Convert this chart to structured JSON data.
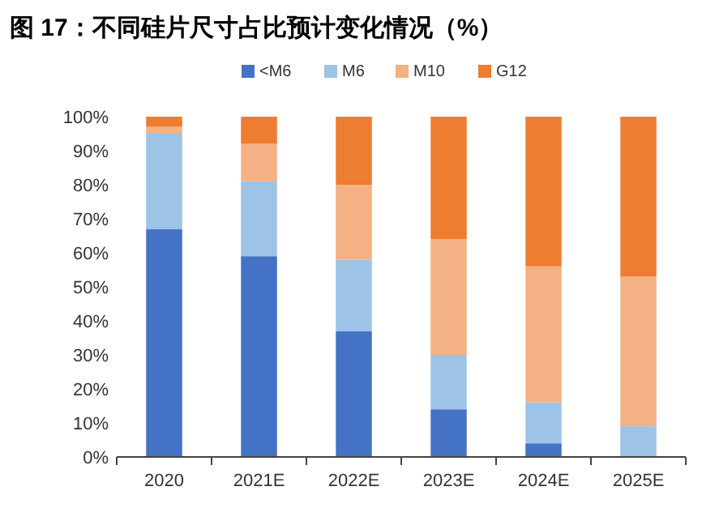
{
  "chart_data": {
    "type": "bar",
    "title": "图 17：不同硅片尺寸占比预计变化情况（%）",
    "categories": [
      "2020",
      "2021E",
      "2022E",
      "2023E",
      "2024E",
      "2025E"
    ],
    "stacked": true,
    "series": [
      {
        "name": "<M6",
        "color": "#4472c4",
        "values": [
          67,
          59,
          37,
          14,
          4,
          0
        ]
      },
      {
        "name": "M6",
        "color": "#9dc3e6",
        "values": [
          28,
          22,
          21,
          16,
          12,
          9
        ]
      },
      {
        "name": "M10",
        "color": "#f4b183",
        "values": [
          2,
          11,
          22,
          34,
          40,
          44
        ]
      },
      {
        "name": "G12",
        "color": "#ed7d31",
        "values": [
          3,
          8,
          20,
          36,
          44,
          47
        ]
      }
    ],
    "ylim": [
      0,
      100
    ],
    "yticks": [
      {
        "value": 0,
        "label": "0%"
      },
      {
        "value": 10,
        "label": "10%"
      },
      {
        "value": 20,
        "label": "20%"
      },
      {
        "value": 30,
        "label": "30%"
      },
      {
        "value": 40,
        "label": "40%"
      },
      {
        "value": 50,
        "label": "50%"
      },
      {
        "value": 60,
        "label": "60%"
      },
      {
        "value": 70,
        "label": "70%"
      },
      {
        "value": 80,
        "label": "80%"
      },
      {
        "value": 90,
        "label": "90%"
      },
      {
        "value": 100,
        "label": "100%"
      }
    ],
    "legend": "top"
  }
}
